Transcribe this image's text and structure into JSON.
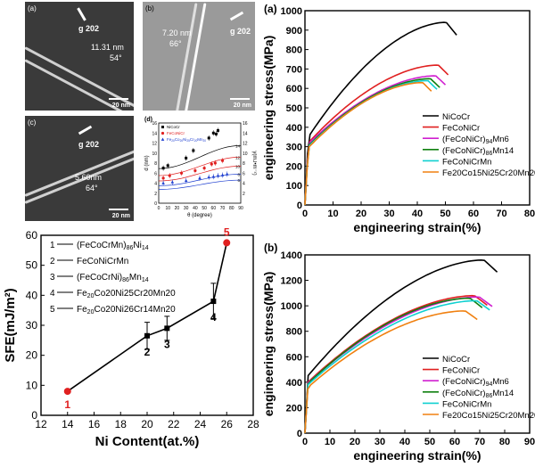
{
  "micrographs": [
    {
      "panel": "(a)",
      "g": "g 202",
      "width": "11.31 nm",
      "angle": "54°",
      "scale": "20 nm"
    },
    {
      "panel": "(b)",
      "g": "g 202",
      "width": "7.20 nm",
      "angle": "66°",
      "scale": "20 nm"
    },
    {
      "panel": "(c)",
      "g": "g 202",
      "width": "5.60nm",
      "angle": "64°",
      "scale": "20 nm"
    }
  ],
  "chart_data": [
    {
      "id": "d",
      "type": "scatter",
      "panel": "(d)",
      "xlabel": "θ (degree)",
      "ylabel": "d (nm)",
      "y2label": "γ(mJ•m⁻²)",
      "xlim": [
        0,
        90
      ],
      "ylim": [
        0,
        16
      ],
      "y2lim": [
        0,
        16
      ],
      "xticks": [
        0,
        10,
        20,
        30,
        40,
        50,
        60,
        70,
        80,
        90
      ],
      "yticks": [
        0,
        2,
        4,
        6,
        8,
        10,
        12,
        14,
        16
      ],
      "y2ticks": [
        2,
        4,
        6,
        8,
        10,
        12,
        14,
        16
      ],
      "fit_curve_labels": [
        "14",
        "12",
        "10",
        "8",
        "6"
      ],
      "series": [
        {
          "name": "NiCoCr",
          "color": "#000000",
          "marker": "square",
          "x": [
            5,
            10,
            30,
            38,
            55,
            60,
            63,
            65
          ],
          "y": [
            7.0,
            7.5,
            9.0,
            10.5,
            13.0,
            14.0,
            13.8,
            14.5
          ]
        },
        {
          "name": "FeCoNiCr",
          "color": "#e02020",
          "marker": "circle",
          "x": [
            5,
            12,
            25,
            40,
            50,
            58,
            62,
            70
          ],
          "y": [
            5.0,
            5.5,
            6.0,
            6.5,
            7.0,
            7.8,
            8.0,
            8.5
          ]
        },
        {
          "name": "Fe20Co20Ni25Cr20Mn20",
          "label_base": "Fe",
          "label_parts": [
            [
              "20",
              "Co"
            ],
            [
              "20",
              "Ni"
            ],
            [
              "25",
              "Cr"
            ],
            [
              "20",
              "Mn"
            ],
            [
              "20",
              ""
            ]
          ],
          "color": "#2040d0",
          "marker": "triangle",
          "x": [
            5,
            15,
            30,
            45,
            55,
            60,
            65,
            70,
            75
          ],
          "y": [
            4.0,
            4.2,
            4.5,
            5.0,
            5.2,
            5.3,
            5.5,
            5.6,
            5.8
          ]
        }
      ]
    },
    {
      "id": "sfe",
      "type": "line",
      "xlabel": "Ni Content(at.%)",
      "ylabel": "SFE(mJ/m²)",
      "xlim": [
        12,
        28
      ],
      "ylim": [
        0,
        60
      ],
      "xticks": [
        12,
        14,
        16,
        18,
        20,
        22,
        24,
        26,
        28
      ],
      "yticks": [
        0,
        10,
        20,
        30,
        40,
        50,
        60
      ],
      "x": [
        14,
        20,
        21.5,
        25,
        26
      ],
      "y": [
        8,
        26.5,
        29,
        38,
        57.5
      ],
      "err": [
        0,
        4.5,
        4,
        6,
        0
      ],
      "point_labels": [
        "1",
        "2",
        "3",
        "4",
        "5"
      ],
      "highlight_points": [
        0,
        4
      ],
      "highlight_color": "#e02020",
      "legend": [
        {
          "num": "1",
          "dash": "----",
          "text": "(FeCoCrMn)",
          "sub": "86",
          "tail": "Ni",
          "tailsub": "14"
        },
        {
          "num": "2",
          "dash": "----",
          "text": "FeCoNiCrMn",
          "sub": "",
          "tail": "",
          "tailsub": ""
        },
        {
          "num": "3",
          "dash": "----",
          "text": "(FeCoCrNi)",
          "sub": "86",
          "tail": "Mn",
          "tailsub": "14"
        },
        {
          "num": "4",
          "dash": "----",
          "text": "Fe",
          "sub": "20",
          "tail": "Co20Ni25Cr20Mn20",
          "tailsub": ""
        },
        {
          "num": "5",
          "dash": "----",
          "text": "Fe",
          "sub": "20",
          "tail": "Co20Ni26Cr14Mn20",
          "tailsub": ""
        }
      ]
    },
    {
      "id": "ssa",
      "type": "line",
      "panel": "(a)",
      "xlabel": "engineering strain(%)",
      "ylabel": "engineering stress(MPa)",
      "xlim": [
        0,
        80
      ],
      "ylim": [
        0,
        1000
      ],
      "xticks": [
        0,
        10,
        20,
        30,
        40,
        50,
        60,
        70,
        80
      ],
      "yticks": [
        0,
        100,
        200,
        300,
        400,
        500,
        600,
        700,
        800,
        900,
        1000
      ],
      "series": [
        {
          "name": "NiCoCr",
          "color": "#000000",
          "yield": 350,
          "uts": 940,
          "fail": 54
        },
        {
          "name": "FeCoNiCr",
          "color": "#e02020",
          "yield": 320,
          "uts": 720,
          "fail": 51
        },
        {
          "name": "(FeCoNiCr)94Mn6",
          "color": "#d020d0",
          "yield": 315,
          "uts": 665,
          "fail": 50
        },
        {
          "name": "(FeCoNiCr)86Mn14",
          "color": "#108010",
          "yield": 305,
          "uts": 650,
          "fail": 48
        },
        {
          "name": "FeCoNiCrMn",
          "color": "#10d0d0",
          "yield": 300,
          "uts": 640,
          "fail": 47
        },
        {
          "name": "Fe20Co15Ni25Cr20Mn20",
          "color": "#f08010",
          "yield": 295,
          "uts": 630,
          "fail": 45
        }
      ],
      "legend_labels": [
        [
          "NiCoCr",
          "",
          ""
        ],
        [
          "FeCoNiCr",
          "",
          ""
        ],
        [
          "(FeCoNiCr)",
          "94",
          "Mn6"
        ],
        [
          "(FeCoNiCr)",
          "86",
          "Mn14"
        ],
        [
          "FeCoNiCrMn",
          "",
          ""
        ],
        [
          "Fe20Co15Ni25Cr20Mn20",
          "",
          ""
        ]
      ]
    },
    {
      "id": "ssb",
      "type": "line",
      "panel": "(b)",
      "xlabel": "engineering strain(%)",
      "ylabel": "engineering stress(MPa)",
      "xlim": [
        0,
        90
      ],
      "ylim": [
        0,
        1400
      ],
      "xticks": [
        0,
        10,
        20,
        30,
        40,
        50,
        60,
        70,
        80,
        90
      ],
      "yticks": [
        0,
        200,
        400,
        600,
        800,
        1000,
        1200,
        1400
      ],
      "series": [
        {
          "name": "NiCoCr",
          "color": "#000000",
          "yield": 450,
          "uts": 1360,
          "fail": 77
        },
        {
          "name": "FeCoNiCr",
          "color": "#e02020",
          "yield": 400,
          "uts": 1080,
          "fail": 73
        },
        {
          "name": "(FeCoNiCr)94Mn6",
          "color": "#d020d0",
          "yield": 395,
          "uts": 1070,
          "fail": 75
        },
        {
          "name": "(FeCoNiCr)86Mn14",
          "color": "#108010",
          "yield": 390,
          "uts": 1060,
          "fail": 71
        },
        {
          "name": "FeCoNiCrMn",
          "color": "#10d0d0",
          "yield": 380,
          "uts": 1040,
          "fail": 74
        },
        {
          "name": "Fe20Co15Ni25Cr20Mn20",
          "color": "#f08010",
          "yield": 360,
          "uts": 960,
          "fail": 69
        }
      ],
      "legend_labels": [
        [
          "NiCoCr",
          "",
          ""
        ],
        [
          "FeCoNiCr",
          "",
          ""
        ],
        [
          "(FeCoNiCr)",
          "94",
          "Mn6"
        ],
        [
          "(FeCoNiCr)",
          "86",
          "Mn14"
        ],
        [
          "FeCoNiCrMn",
          "",
          ""
        ],
        [
          "Fe20Co15Ni25Cr20Mn20",
          "",
          ""
        ]
      ]
    }
  ]
}
